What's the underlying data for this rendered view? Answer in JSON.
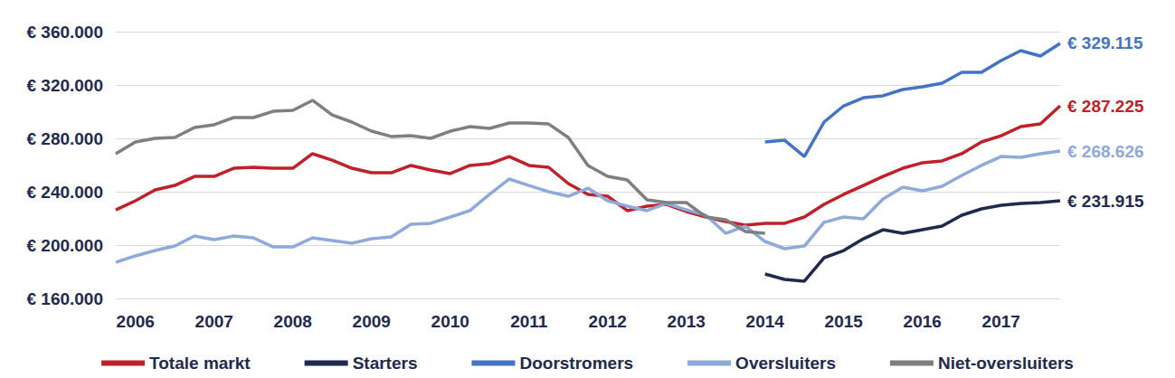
{
  "chart_data": {
    "type": "line",
    "categories": [
      null,
      "2006",
      null,
      null,
      null,
      "2007",
      null,
      null,
      null,
      "2008",
      null,
      null,
      null,
      "2009",
      null,
      null,
      null,
      "2010",
      null,
      null,
      null,
      "2011",
      null,
      null,
      null,
      "2012",
      null,
      null,
      null,
      "2013",
      null,
      null,
      null,
      "2014",
      null,
      null,
      null,
      "2015",
      null,
      null,
      null,
      "2016",
      null,
      null,
      null,
      "2017",
      null,
      null,
      null
    ],
    "series": [
      {
        "name": "Totale markt",
        "color": "#c0202a",
        "values": [
          226400,
          233200,
          241400,
          244700,
          251500,
          251500,
          257600,
          258300,
          257600,
          257600,
          268500,
          263700,
          257600,
          254200,
          254200,
          259700,
          256300,
          253600,
          259700,
          261000,
          266400,
          259700,
          258300,
          246100,
          238000,
          236600,
          225800,
          229200,
          230500,
          225100,
          221000,
          217600,
          214900,
          216300,
          216300,
          221000,
          230500,
          238000,
          244700,
          251500,
          257600,
          261700,
          263100,
          268500,
          277300,
          282000,
          288800,
          290800,
          304400
        ]
      },
      {
        "name": "Starters",
        "color": "#1f2a4e",
        "values": [
          null,
          null,
          null,
          null,
          null,
          null,
          null,
          null,
          null,
          null,
          null,
          null,
          null,
          null,
          null,
          null,
          null,
          null,
          null,
          null,
          null,
          null,
          null,
          null,
          null,
          null,
          null,
          null,
          null,
          null,
          null,
          null,
          null,
          178300,
          174200,
          172900,
          190500,
          195900,
          204700,
          211500,
          208800,
          211500,
          214200,
          222400,
          227100,
          229800,
          231200,
          231900,
          233200
        ]
      },
      {
        "name": "Doorstromers",
        "color": "#4472c4",
        "values": [
          null,
          null,
          null,
          null,
          null,
          null,
          null,
          null,
          null,
          null,
          null,
          null,
          null,
          null,
          null,
          null,
          null,
          null,
          null,
          null,
          null,
          null,
          null,
          null,
          null,
          null,
          null,
          null,
          null,
          null,
          null,
          null,
          null,
          277300,
          278600,
          266400,
          292200,
          304400,
          310500,
          311900,
          316600,
          318600,
          321400,
          329500,
          329500,
          338300,
          345800,
          341700,
          351200
        ]
      },
      {
        "name": "Oversluiters",
        "color": "#8eaadb",
        "values": [
          187100,
          191900,
          195900,
          199300,
          206800,
          204100,
          206800,
          205400,
          198600,
          198600,
          205400,
          203400,
          201400,
          204700,
          206100,
          215600,
          216300,
          221000,
          225800,
          238000,
          249500,
          244700,
          240000,
          236600,
          242700,
          233200,
          229200,
          225800,
          231200,
          226400,
          222400,
          208800,
          214200,
          202700,
          197300,
          199300,
          217000,
          221000,
          219700,
          234600,
          243400,
          240700,
          244100,
          252200,
          259700,
          266400,
          265800,
          268500,
          270500
        ]
      },
      {
        "name": "Niet-oversluiters",
        "color": "#7f7f7f",
        "values": [
          268500,
          277300,
          280000,
          280700,
          288100,
          290200,
          295600,
          295600,
          300300,
          301000,
          308500,
          297600,
          292200,
          285400,
          281400,
          282000,
          280000,
          285400,
          288800,
          287500,
          291500,
          291500,
          290800,
          280700,
          259700,
          251500,
          248800,
          233900,
          231900,
          231900,
          221000,
          219000,
          210200,
          208800,
          null,
          null,
          null,
          null,
          null,
          null,
          null,
          null,
          null,
          null,
          null,
          null,
          null,
          null,
          null
        ]
      }
    ],
    "annotations": [
      {
        "series": "Doorstromers",
        "text": "€ 329.115"
      },
      {
        "series": "Totale markt",
        "text": "€ 287.225"
      },
      {
        "series": "Oversluiters",
        "text": "€ 268.626"
      },
      {
        "series": "Starters",
        "text": "€ 231.915"
      }
    ],
    "ylim": [
      160000,
      360000
    ],
    "yticks": [
      {
        "value": 160000,
        "label": "€ 160.000"
      },
      {
        "value": 200000,
        "label": "€ 200.000"
      },
      {
        "value": 240000,
        "label": "€ 240.000"
      },
      {
        "value": 280000,
        "label": "€ 280.000"
      },
      {
        "value": 320000,
        "label": "€ 320.000"
      },
      {
        "value": 360000,
        "label": "€ 360.000"
      }
    ],
    "grid": true,
    "legend": "bottom"
  }
}
